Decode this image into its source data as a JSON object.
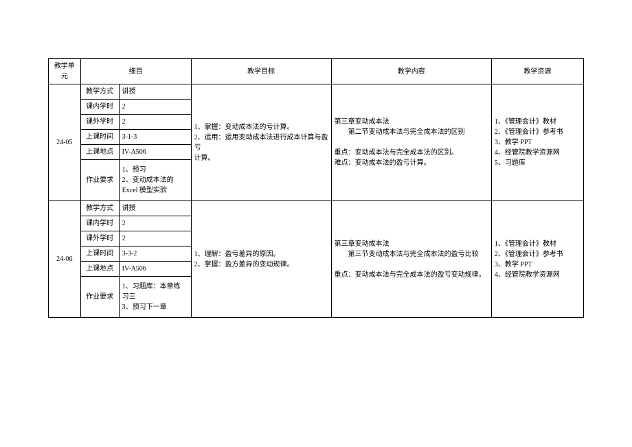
{
  "header": {
    "unit": "教学单\n元",
    "detail": "细目",
    "goal": "教学目标",
    "content": "教学内容",
    "resource": "教学资源"
  },
  "rows": [
    {
      "unit": "24-05",
      "method_label": "教学方式",
      "method": "讲授",
      "in_class_label": "课内学时",
      "in_class": "2",
      "out_class_label": "课外学时",
      "out_class": "2",
      "time_label": "上课时间",
      "time": "3-1-3",
      "location_label": "上课地点",
      "location": "IV-A506",
      "homework_label": "作业要求",
      "homework": "1、预习\n2、变动成本法的\nExcel 模型实验",
      "goal": "1、掌握：变动成本法的亏计算。\n2、运用：运用变动成本法进行成本计算与盈亏\n计算。",
      "content": "第三章变动成本法\n　　第二节变动成本法与完全成本法的区别\n\n重点：变动成本法与完全成本法的区别。\n难点：变动成本法的盈亏计算。",
      "resource": "1、《管理会计》教材\n2、《管理会计》参考书\n3、教学 PPT\n4、经管院教学资源网\n5、习题库"
    },
    {
      "unit": "24-06",
      "method_label": "教学方式",
      "method": "讲授",
      "in_class_label": "课内学时",
      "in_class": "2",
      "out_class_label": "课外学时",
      "out_class": "2",
      "time_label": "上课时间",
      "time": "3-3-2",
      "location_label": "上课地点",
      "location": "IV-A506",
      "homework_label": "作业要求",
      "homework": "1、习题库：本章练\n习三\n3、预习下一章",
      "goal": "1、理解：盈亏差异的原因。\n2、掌握：盈方差异的变动规律。",
      "content": "第三章变动成本法\n　　第三节变动成本法与完全成本法的盈亏比较\n\n重点：变动成本法与完全成本法的盈亏变动规律。",
      "resource": "1、《管理会计》教材\n2、《管理会计》参考书\n3、教学 PPT\n4、经管院教学资源网"
    }
  ]
}
